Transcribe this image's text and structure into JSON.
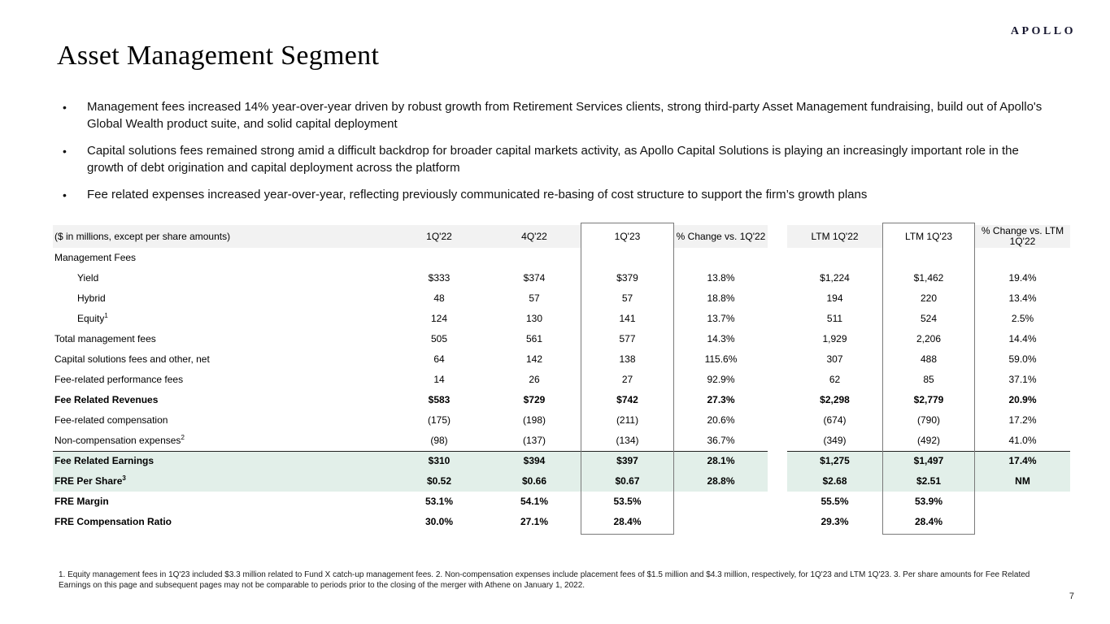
{
  "slide": {
    "logo_text": "APOLLO",
    "title": "Asset Management Segment",
    "page_number": "7",
    "footnote": "1. Equity management fees in 1Q'23 included $3.3 million related to Fund X catch-up management fees. 2. Non-compensation expenses include placement fees of $1.5 million and $4.3 million, respectively, for 1Q'23 and LTM 1Q'23. 3. Per share amounts for Fee Related Earnings on this page and subsequent pages may not be comparable to periods prior to the closing of the merger with Athene on January 1, 2022."
  },
  "bullets": [
    "Management fees increased 14% year-over-year driven by robust growth from Retirement Services clients, strong third-party Asset Management fundraising, build out of Apollo's Global Wealth product suite, and solid capital deployment",
    "Capital solutions fees remained strong amid a difficult backdrop for broader capital markets activity, as Apollo Capital Solutions is playing an increasingly important role in the growth of debt origination and capital deployment across the platform",
    "Fee related expenses increased year-over-year, reflecting previously communicated re-basing of cost structure to support the firm’s growth plans"
  ],
  "table": {
    "unit_label": "($ in millions, except per share amounts)",
    "columns": [
      "1Q'22",
      "4Q'22",
      "1Q'23",
      "% Change vs. 1Q'22",
      "LTM 1Q'22",
      "LTM 1Q'23",
      "% Change vs. LTM 1Q'22"
    ],
    "rows": [
      {
        "label": "Management Fees",
        "values": [
          "",
          "",
          "",
          "",
          "",
          "",
          ""
        ]
      },
      {
        "label": "Yield",
        "indent": true,
        "values": [
          "$333",
          "$374",
          "$379",
          "13.8%",
          "$1,224",
          "$1,462",
          "19.4%"
        ]
      },
      {
        "label": "Hybrid",
        "indent": true,
        "values": [
          "48",
          "57",
          "57",
          "18.8%",
          "194",
          "220",
          "13.4%"
        ]
      },
      {
        "label": "Equity",
        "sup": "1",
        "indent": true,
        "values": [
          "124",
          "130",
          "141",
          "13.7%",
          "511",
          "524",
          "2.5%"
        ]
      },
      {
        "label": "Total management fees",
        "values": [
          "505",
          "561",
          "577",
          "14.3%",
          "1,929",
          "2,206",
          "14.4%"
        ]
      },
      {
        "label": "Capital solutions fees and other, net",
        "values": [
          "64",
          "142",
          "138",
          "115.6%",
          "307",
          "488",
          "59.0%"
        ]
      },
      {
        "label": "Fee-related performance fees",
        "values": [
          "14",
          "26",
          "27",
          "92.9%",
          "62",
          "85",
          "37.1%"
        ]
      },
      {
        "label": "Fee Related Revenues",
        "bold": true,
        "values": [
          "$583",
          "$729",
          "$742",
          "27.3%",
          "$2,298",
          "$2,779",
          "20.9%"
        ]
      },
      {
        "label": "Fee-related compensation",
        "values": [
          "(175)",
          "(198)",
          "(211)",
          "20.6%",
          "(674)",
          "(790)",
          "17.2%"
        ]
      },
      {
        "label": "Non-compensation expenses",
        "sup": "2",
        "values": [
          "(98)",
          "(137)",
          "(134)",
          "36.7%",
          "(349)",
          "(492)",
          "41.0%"
        ]
      },
      {
        "label": "Fee Related Earnings",
        "bold": true,
        "highlight": true,
        "topline": true,
        "values": [
          "$310",
          "$394",
          "$397",
          "28.1%",
          "$1,275",
          "$1,497",
          "17.4%"
        ]
      },
      {
        "label": "FRE Per Share",
        "sup": "3",
        "bold": true,
        "highlight": true,
        "values": [
          "$0.52",
          "$0.66",
          "$0.67",
          "28.8%",
          "$2.68",
          "$2.51",
          "NM"
        ]
      },
      {
        "label": "FRE Margin",
        "bold": true,
        "values": [
          "53.1%",
          "54.1%",
          "53.5%",
          "",
          "55.5%",
          "53.9%",
          ""
        ]
      },
      {
        "label": "FRE Compensation Ratio",
        "bold": true,
        "values": [
          "30.0%",
          "27.1%",
          "28.4%",
          "",
          "29.3%",
          "28.4%",
          ""
        ]
      }
    ]
  },
  "colors": {
    "header_band": "#f2f2f2",
    "highlight_band": "#e2efe9",
    "box_border": "#7a7a7a",
    "accent_line": "#222222"
  }
}
